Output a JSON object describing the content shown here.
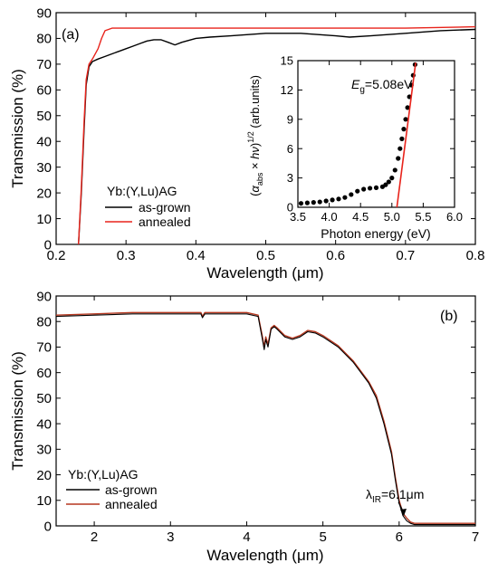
{
  "colors": {
    "as_grown": "#000000",
    "annealed": "#e8231b",
    "annealed_b": "#b5371f",
    "fit": "#e8231b",
    "points": "#000000"
  },
  "chart_data": [
    {
      "type": "line",
      "panel_label": "(a)",
      "xlabel": "Wavelength (μm)",
      "ylabel": "Transmission (%)",
      "xlim": [
        0.2,
        0.8
      ],
      "ylim": [
        0,
        90
      ],
      "xticks": [
        0.2,
        0.3,
        0.4,
        0.5,
        0.6,
        0.7,
        0.8
      ],
      "yticks": [
        0,
        10,
        20,
        30,
        40,
        50,
        60,
        70,
        80,
        90
      ],
      "grid": false,
      "legend": {
        "title": "Yb:(Y,Lu)AG",
        "placement": "bottom-left"
      },
      "series": [
        {
          "name": "as-grown",
          "color_key": "as_grown",
          "x": [
            0.232,
            0.236,
            0.24,
            0.243,
            0.247,
            0.252,
            0.26,
            0.27,
            0.28,
            0.29,
            0.3,
            0.31,
            0.32,
            0.33,
            0.34,
            0.35,
            0.36,
            0.37,
            0.38,
            0.4,
            0.42,
            0.45,
            0.5,
            0.55,
            0.6,
            0.62,
            0.65,
            0.7,
            0.75,
            0.8
          ],
          "y": [
            0,
            20,
            45,
            62,
            69,
            71,
            72,
            73,
            74,
            75,
            76,
            77,
            78,
            79,
            79.5,
            79.5,
            78.5,
            77.5,
            78.5,
            80,
            80.5,
            81,
            82,
            82,
            81,
            80.5,
            81,
            82,
            83,
            83.5
          ]
        },
        {
          "name": "annealed",
          "color_key": "annealed",
          "x": [
            0.232,
            0.236,
            0.24,
            0.243,
            0.247,
            0.252,
            0.26,
            0.265,
            0.27,
            0.275,
            0.28,
            0.3,
            0.35,
            0.4,
            0.5,
            0.6,
            0.7,
            0.8
          ],
          "y": [
            0,
            22,
            48,
            64,
            70,
            72,
            76,
            80,
            83,
            83.5,
            84,
            84,
            84,
            84,
            84,
            84,
            84,
            84.5
          ]
        }
      ]
    },
    {
      "type": "scatter",
      "inset_of": "(a)",
      "xlabel": "Photon energy (eV)",
      "ylabel": "(α_abs × hν)^1/2 (arb.units)",
      "xlim": [
        3.5,
        6.0
      ],
      "ylim": [
        0,
        15
      ],
      "xticks": [
        3.5,
        4.0,
        4.5,
        5.0,
        5.5,
        6.0
      ],
      "yticks": [
        0,
        3,
        6,
        9,
        12,
        15
      ],
      "annotation": {
        "prefix": "E",
        "subscript": "g",
        "suffix": "=5.08eV"
      },
      "points": {
        "x": [
          3.55,
          3.65,
          3.75,
          3.85,
          3.95,
          4.05,
          4.15,
          4.25,
          4.35,
          4.45,
          4.55,
          4.65,
          4.75,
          4.85,
          4.9,
          4.95,
          5.0,
          5.05,
          5.1,
          5.13,
          5.16,
          5.19,
          5.22,
          5.25,
          5.28,
          5.31,
          5.34,
          5.37
        ],
        "y": [
          0.4,
          0.45,
          0.5,
          0.55,
          0.65,
          0.75,
          0.85,
          1.0,
          1.3,
          1.65,
          1.85,
          1.95,
          2.0,
          2.1,
          2.3,
          2.6,
          3.0,
          3.8,
          5.0,
          6.0,
          7.0,
          8.0,
          9.0,
          10.2,
          11.3,
          12.5,
          13.5,
          14.6
        ]
      },
      "fit_line": {
        "x": [
          5.08,
          5.38
        ],
        "y": [
          0,
          14.8
        ]
      }
    },
    {
      "type": "line",
      "panel_label": "(b)",
      "xlabel": "Wavelength (μm)",
      "ylabel": "Transmission (%)",
      "xlim": [
        1.5,
        7
      ],
      "ylim": [
        0,
        90
      ],
      "xticks": [
        2,
        3,
        4,
        5,
        6,
        7
      ],
      "yticks": [
        0,
        10,
        20,
        30,
        40,
        50,
        60,
        70,
        80,
        90
      ],
      "grid": false,
      "legend": {
        "title": "Yb:(Y,Lu)AG",
        "placement": "bottom-left"
      },
      "annotation": {
        "prefix": "λ",
        "subscript": "IR",
        "suffix": "=6.1μm"
      },
      "series": [
        {
          "name": "as-grown",
          "color_key": "as_grown",
          "x": [
            1.5,
            2.0,
            2.5,
            3.0,
            3.4,
            3.42,
            3.45,
            3.5,
            4.0,
            4.15,
            4.2,
            4.23,
            4.25,
            4.28,
            4.32,
            4.36,
            4.4,
            4.5,
            4.6,
            4.7,
            4.8,
            4.9,
            5.0,
            5.2,
            5.4,
            5.6,
            5.7,
            5.8,
            5.9,
            5.95,
            6.0,
            6.05,
            6.1,
            6.15,
            6.2,
            6.5,
            7.0
          ],
          "y": [
            82,
            82.5,
            83,
            83,
            83,
            81.5,
            83,
            83,
            83,
            82,
            74,
            69,
            73,
            70,
            77,
            78,
            77,
            74,
            73,
            74,
            76,
            75.5,
            74,
            70,
            64,
            56,
            50,
            40,
            28,
            18,
            9,
            4,
            2,
            1,
            0.5,
            0.5,
            0.5
          ]
        },
        {
          "name": "annealed",
          "color_key": "annealed_b",
          "x": [
            1.5,
            2.0,
            2.5,
            3.0,
            3.4,
            3.42,
            3.45,
            3.5,
            4.0,
            4.15,
            4.2,
            4.23,
            4.25,
            4.28,
            4.32,
            4.36,
            4.4,
            4.5,
            4.6,
            4.7,
            4.8,
            4.9,
            5.0,
            5.2,
            5.4,
            5.6,
            5.7,
            5.8,
            5.9,
            5.95,
            6.0,
            6.05,
            6.1,
            6.15,
            6.2,
            6.5,
            7.0
          ],
          "y": [
            82.5,
            83,
            83.5,
            83.5,
            83.5,
            82,
            83.5,
            83.5,
            83.5,
            82.5,
            75,
            70,
            74,
            71,
            77.5,
            78.5,
            77.5,
            74.5,
            73.5,
            74.5,
            76.5,
            76,
            74.5,
            70.5,
            64.5,
            56.5,
            51,
            41,
            29,
            19,
            10,
            5,
            3,
            1.5,
            1,
            1,
            1
          ]
        }
      ]
    }
  ]
}
